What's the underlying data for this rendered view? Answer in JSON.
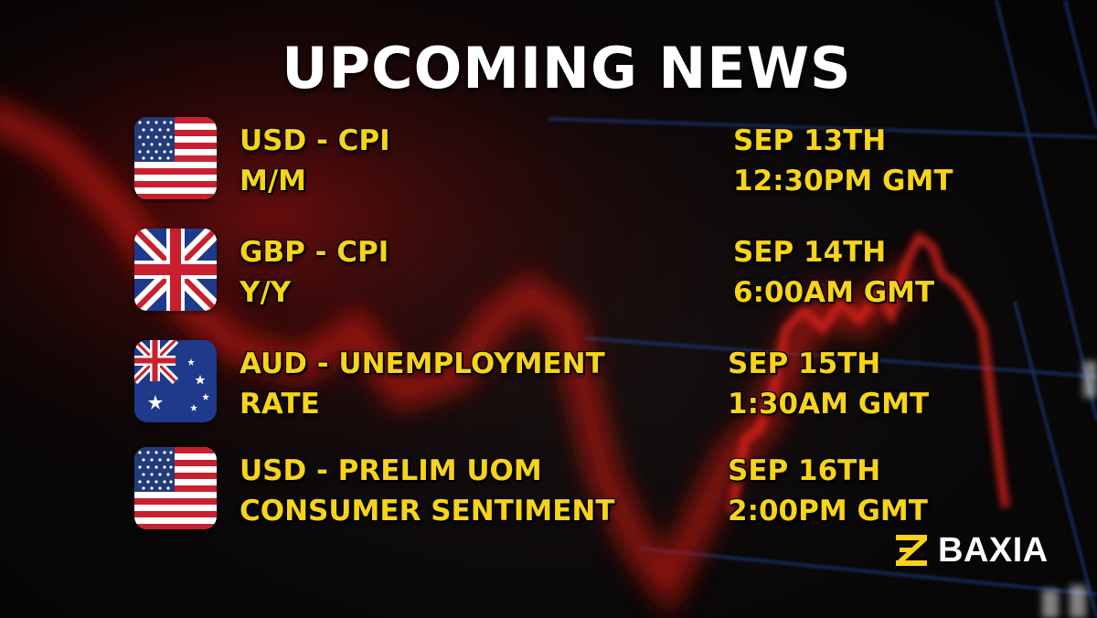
{
  "title": "UPCOMING NEWS",
  "events": [
    {
      "flag": "usa-flag-icon",
      "line1": "USD - CPI",
      "line2": "M/M",
      "date": "SEP 13TH",
      "time": "12:30PM GMT"
    },
    {
      "flag": "uk-flag-icon",
      "line1": "GBP - CPI",
      "line2": "Y/Y",
      "date": "SEP 14TH",
      "time": "6:00AM GMT"
    },
    {
      "flag": "australia-flag-icon",
      "line1": "AUD - UNEMPLOYMENT",
      "line2": "RATE",
      "date": "SEP 15TH",
      "time": "1:30AM GMT"
    },
    {
      "flag": "usa-flag-icon",
      "line1": "USD - PRELIM UOM",
      "line2": "CONSUMER SENTIMENT",
      "date": "SEP 16TH",
      "time": "2:00PM GMT"
    }
  ],
  "brand": {
    "name": "BAXIA",
    "mark_icon": "baxia-logo-icon"
  },
  "colors": {
    "accent": "#f7d31a",
    "title": "#ffffff",
    "chart_line": "#d8211a",
    "grid": "#1f3f8a"
  }
}
